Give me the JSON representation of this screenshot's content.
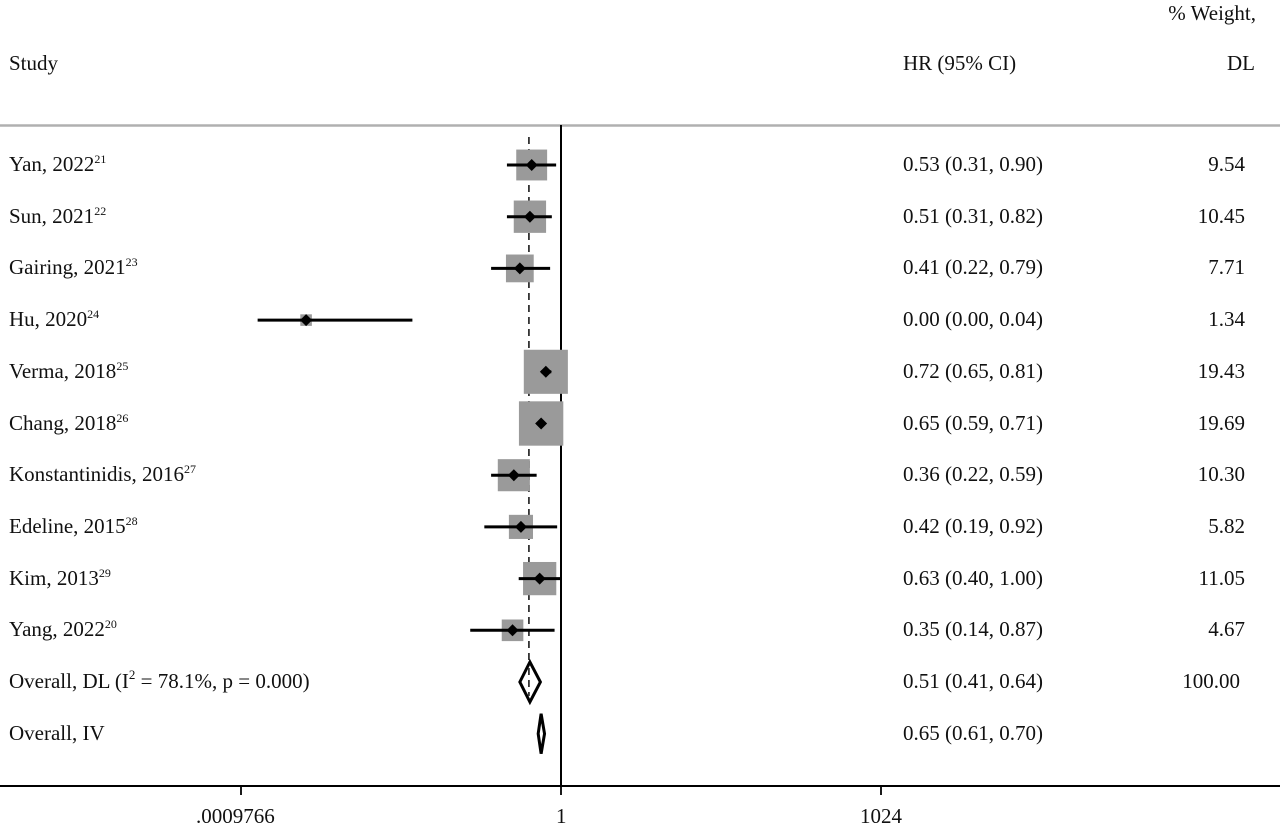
{
  "header": {
    "study_label": "Study",
    "hr_label": "HR (95% CI)",
    "weight_label_line1": "% Weight,",
    "weight_label_line2": "DL"
  },
  "rows": [
    {
      "study": "Yan, 2022",
      "ref": "21",
      "hr_text": "0.53 (0.31, 0.90)",
      "weight": "9.54"
    },
    {
      "study": "Sun, 2021",
      "ref": "22",
      "hr_text": "0.51 (0.31, 0.82)",
      "weight": "10.45"
    },
    {
      "study": "Gairing, 2021",
      "ref": "23",
      "hr_text": "0.41 (0.22, 0.79)",
      "weight": "7.71"
    },
    {
      "study": "Hu, 2020",
      "ref": "24",
      "hr_text": "0.00 (0.00, 0.04)",
      "weight": "1.34"
    },
    {
      "study": "Verma, 2018",
      "ref": "25",
      "hr_text": "0.72 (0.65, 0.81)",
      "weight": "19.43"
    },
    {
      "study": "Chang, 2018",
      "ref": "26",
      "hr_text": "0.65 (0.59, 0.71)",
      "weight": "19.69"
    },
    {
      "study": "Konstantinidis, 2016",
      "ref": "27",
      "hr_text": "0.36 (0.22, 0.59)",
      "weight": "10.30"
    },
    {
      "study": "Edeline, 2015",
      "ref": "28",
      "hr_text": "0.42 (0.19, 0.92)",
      "weight": "5.82"
    },
    {
      "study": "Kim, 2013",
      "ref": "29",
      "hr_text": "0.63 (0.40, 1.00)",
      "weight": "11.05"
    },
    {
      "study": "Yang, 2022",
      "ref": "20",
      "hr_text": "0.35 (0.14, 0.87)",
      "weight": "4.67"
    }
  ],
  "overall": [
    {
      "label_prefix": "Overall, DL (I",
      "label_sup": "2",
      "label_suffix": " = 78.1%, p = 0.000)",
      "hr_text": "0.51 (0.41, 0.64)",
      "weight": "100.00"
    },
    {
      "label_prefix": "Overall, IV",
      "label_sup": "",
      "label_suffix": "",
      "hr_text": "0.65 (0.61, 0.70)",
      "weight": ""
    }
  ],
  "axis": {
    "ticks": [
      ".0009766",
      "1",
      "1024"
    ]
  },
  "colors": {
    "box": "#9a9a9a",
    "line": "#000000",
    "header_rule": "#b0b0b0"
  },
  "chart_data": {
    "type": "forest",
    "title": "",
    "xlabel": "",
    "ylabel": "",
    "x_scale": "log2",
    "xlim": [
      0.0009766,
      1024
    ],
    "x_ticks": [
      0.0009766,
      1,
      1024
    ],
    "x_tick_labels": [
      ".0009766",
      "1",
      "1024"
    ],
    "null_line": 1,
    "pooled_dashed_line": 0.51,
    "columns": [
      "Study",
      "HR (95% CI)",
      "% Weight, DL"
    ],
    "studies": [
      {
        "name": "Yan, 2022",
        "ref": 21,
        "hr": 0.53,
        "lower": 0.31,
        "upper": 0.9,
        "weight": 9.54
      },
      {
        "name": "Sun, 2021",
        "ref": 22,
        "hr": 0.51,
        "lower": 0.31,
        "upper": 0.82,
        "weight": 10.45
      },
      {
        "name": "Gairing, 2021",
        "ref": 23,
        "hr": 0.41,
        "lower": 0.22,
        "upper": 0.79,
        "weight": 7.71
      },
      {
        "name": "Hu, 2020",
        "ref": 24,
        "hr": 0.004,
        "lower": 0.0014,
        "upper": 0.04,
        "weight": 1.34
      },
      {
        "name": "Verma, 2018",
        "ref": 25,
        "hr": 0.72,
        "lower": 0.65,
        "upper": 0.81,
        "weight": 19.43
      },
      {
        "name": "Chang, 2018",
        "ref": 26,
        "hr": 0.65,
        "lower": 0.59,
        "upper": 0.71,
        "weight": 19.69
      },
      {
        "name": "Konstantinidis, 2016",
        "ref": 27,
        "hr": 0.36,
        "lower": 0.22,
        "upper": 0.59,
        "weight": 10.3
      },
      {
        "name": "Edeline, 2015",
        "ref": 28,
        "hr": 0.42,
        "lower": 0.19,
        "upper": 0.92,
        "weight": 5.82
      },
      {
        "name": "Kim, 2013",
        "ref": 29,
        "hr": 0.63,
        "lower": 0.4,
        "upper": 1.0,
        "weight": 11.05
      },
      {
        "name": "Yang, 2022",
        "ref": 20,
        "hr": 0.35,
        "lower": 0.14,
        "upper": 0.87,
        "weight": 4.67
      }
    ],
    "pooled": [
      {
        "name": "Overall, DL",
        "i2": "78.1%",
        "p": "0.000",
        "hr": 0.51,
        "lower": 0.41,
        "upper": 0.64,
        "weight": 100.0
      },
      {
        "name": "Overall, IV",
        "hr": 0.65,
        "lower": 0.61,
        "upper": 0.7
      }
    ]
  }
}
